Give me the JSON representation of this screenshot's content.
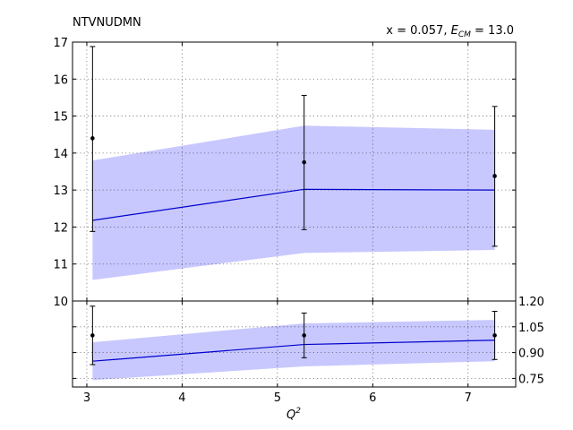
{
  "chart_data": {
    "type": "line",
    "title": "NTVNUDMN",
    "subtitle_prefix": "x = 0.057, ",
    "subtitle_ecm_symbol": "E",
    "subtitle_ecm_sub": "CM",
    "subtitle_ecm_value": " = 13.0",
    "xlabel_base": "Q",
    "xlabel_sup": "2",
    "xlim": [
      2.85,
      7.5
    ],
    "x_ticks": [
      3,
      4,
      5,
      6,
      7
    ],
    "x_tick_labels": [
      "3",
      "4",
      "5",
      "6",
      "7"
    ],
    "grid": true,
    "main_panel": {
      "ylim": [
        10,
        17
      ],
      "y_ticks": [
        10,
        11,
        12,
        13,
        14,
        15,
        16,
        17
      ],
      "y_tick_labels": [
        "10",
        "11",
        "12",
        "13",
        "14",
        "15",
        "16",
        "17"
      ],
      "data": {
        "x": [
          3.06,
          5.28,
          7.28
        ],
        "y": [
          14.4,
          13.75,
          13.38
        ],
        "yerr_low": [
          11.88,
          11.93,
          11.48
        ],
        "yerr_high": [
          16.88,
          15.56,
          15.26
        ]
      },
      "theory": {
        "x": [
          3.06,
          5.28,
          7.28
        ],
        "y": [
          12.18,
          13.02,
          13.0
        ],
        "band_low": [
          10.57,
          11.3,
          11.38
        ],
        "band_high": [
          13.8,
          14.74,
          14.63
        ]
      }
    },
    "ratio_panel": {
      "ylim": [
        0.7,
        1.2
      ],
      "y_ticks": [
        0.75,
        0.9,
        1.05,
        1.2
      ],
      "y_tick_labels": [
        "0.75",
        "0.90",
        "1.05",
        "1.20"
      ],
      "data": {
        "x": [
          3.06,
          5.28,
          7.28
        ],
        "y": [
          1.0,
          1.0,
          1.0
        ],
        "yerr_low": [
          0.83,
          0.87,
          0.86
        ],
        "yerr_high": [
          1.17,
          1.13,
          1.14
        ]
      },
      "theory": {
        "x": [
          3.06,
          5.28,
          7.28
        ],
        "y": [
          0.85,
          0.947,
          0.972
        ],
        "band_low": [
          0.74,
          0.82,
          0.85
        ],
        "band_high": [
          0.96,
          1.07,
          1.09
        ]
      }
    }
  }
}
